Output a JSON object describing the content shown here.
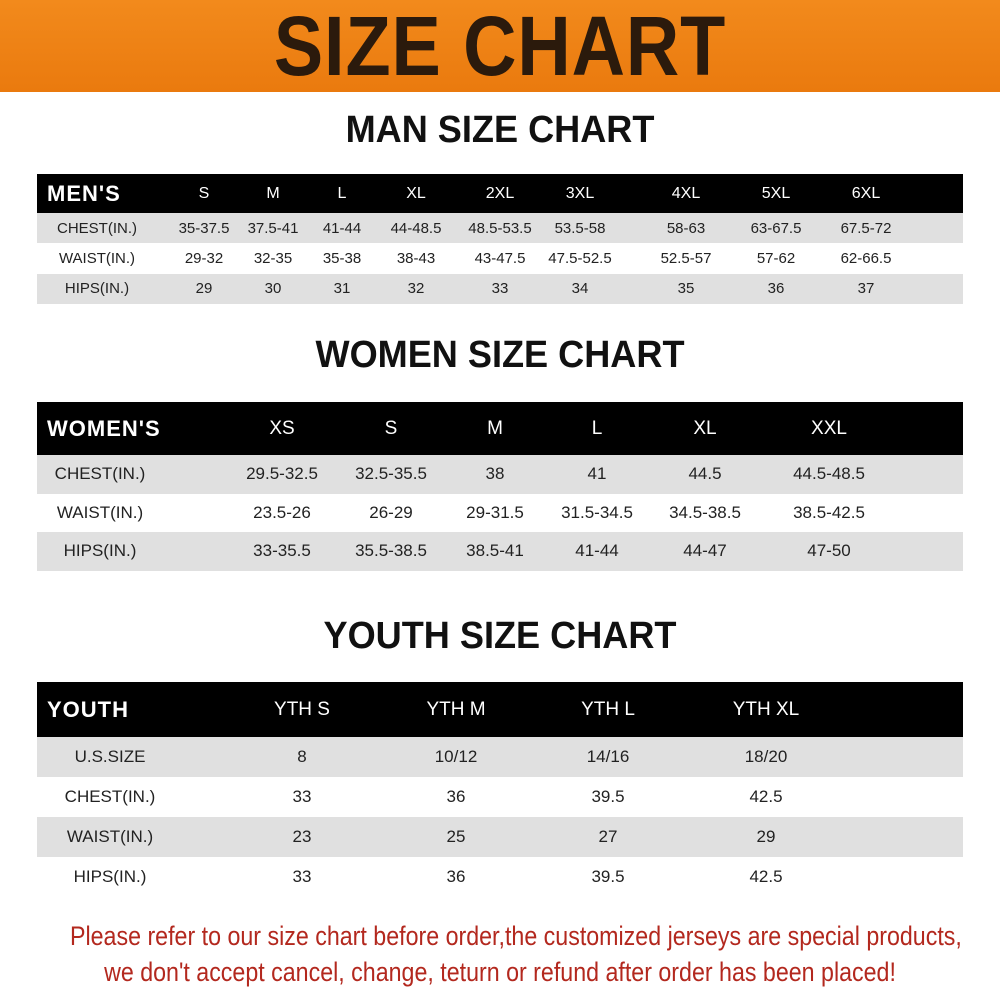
{
  "banner_title": "SIZE CHART",
  "colors": {
    "banner": "#ee8215",
    "header_row": "#000000",
    "footer_text": "#b3281e"
  },
  "men": {
    "title": "MAN SIZE CHART",
    "header_label": "MEN'S",
    "sizes": [
      "S",
      "M",
      "L",
      "XL",
      "2XL",
      "3XL",
      "4XL",
      "5XL",
      "6XL"
    ],
    "rows": [
      {
        "label": "CHEST(IN.)",
        "values": [
          "35-37.5",
          "37.5-41",
          "41-44",
          "44-48.5",
          "48.5-53.5",
          "53.5-58",
          "58-63",
          "63-67.5",
          "67.5-72"
        ]
      },
      {
        "label": "WAIST(IN.)",
        "values": [
          "29-32",
          "32-35",
          "35-38",
          "38-43",
          "43-47.5",
          "47.5-52.5",
          "52.5-57",
          "57-62",
          "62-66.5"
        ]
      },
      {
        "label": "HIPS(IN.)",
        "values": [
          "29",
          "30",
          "31",
          "32",
          "33",
          "34",
          "35",
          "36",
          "37"
        ]
      }
    ]
  },
  "women": {
    "title": "WOMEN SIZE CHART",
    "header_label": "WOMEN'S",
    "sizes": [
      "XS",
      "S",
      "M",
      "L",
      "XL",
      "XXL"
    ],
    "rows": [
      {
        "label": "CHEST(IN.)",
        "values": [
          "29.5-32.5",
          "32.5-35.5",
          "38",
          "41",
          "44.5",
          "44.5-48.5"
        ]
      },
      {
        "label": "WAIST(IN.)",
        "values": [
          "23.5-26",
          "26-29",
          "29-31.5",
          "31.5-34.5",
          "34.5-38.5",
          "38.5-42.5"
        ]
      },
      {
        "label": "HIPS(IN.)",
        "values": [
          "33-35.5",
          "35.5-38.5",
          "38.5-41",
          "41-44",
          "44-47",
          "47-50"
        ]
      }
    ]
  },
  "youth": {
    "title": "YOUTH SIZE CHART",
    "header_label": "YOUTH",
    "sizes": [
      "YTH S",
      "YTH M",
      "YTH L",
      "YTH XL"
    ],
    "rows": [
      {
        "label": "U.S.SIZE",
        "values": [
          "8",
          "10/12",
          "14/16",
          "18/20"
        ]
      },
      {
        "label": "CHEST(IN.)",
        "values": [
          "33",
          "36",
          "39.5",
          "42.5"
        ]
      },
      {
        "label": "WAIST(IN.)",
        "values": [
          "23",
          "25",
          "27",
          "29"
        ]
      },
      {
        "label": "HIPS(IN.)",
        "values": [
          "33",
          "36",
          "39.5",
          "42.5"
        ]
      }
    ]
  },
  "footer": {
    "line1": "Please refer to our size chart before order,the customized jerseys are special products,",
    "line2": "we don't accept cancel, change, teturn or refund after order has been placed!"
  }
}
